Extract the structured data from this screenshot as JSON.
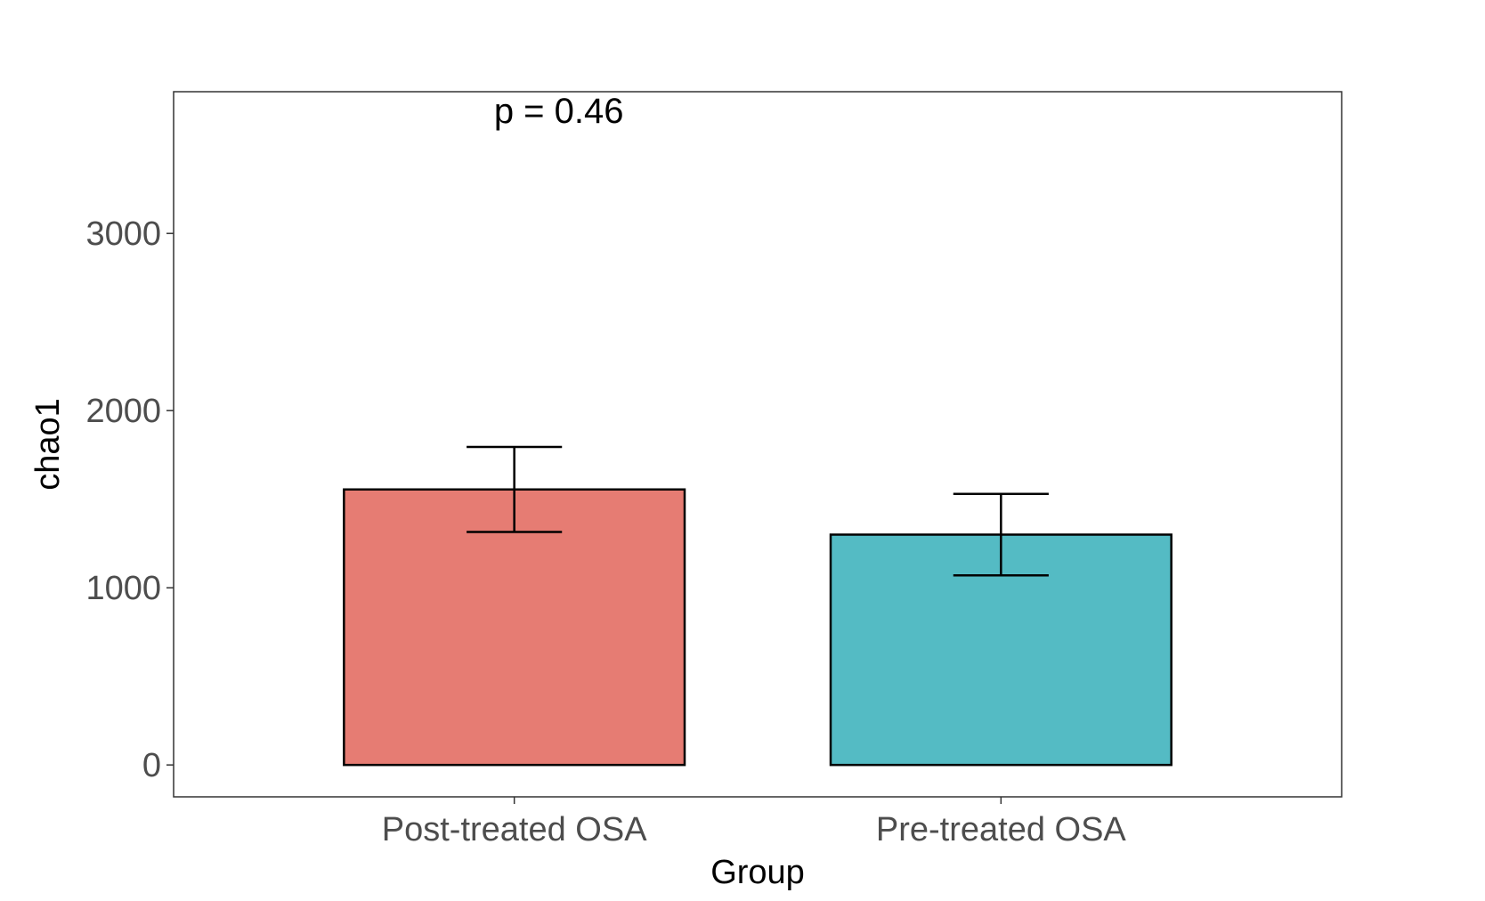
{
  "chart_data": {
    "type": "bar",
    "title": "",
    "xlabel": "Group",
    "ylabel": "chao1",
    "categories": [
      "Post-treated OSA",
      "Pre-treated OSA"
    ],
    "values": [
      1555,
      1300
    ],
    "error_low": [
      1315,
      1070
    ],
    "error_high": [
      1795,
      1530
    ],
    "colors": [
      "#E67C73",
      "#54BBC4"
    ],
    "bar_outline_color": "#000000",
    "ylim": [
      -180,
      3800
    ],
    "yticks": [
      0,
      1000,
      2000,
      3000
    ],
    "ytick_labels": [
      "0",
      "1000",
      "2000",
      "3000"
    ],
    "grid": false,
    "legend": "none",
    "annotation": {
      "text": "p = 0.46",
      "x_category": "Post-treated OSA",
      "y": 3700
    }
  }
}
